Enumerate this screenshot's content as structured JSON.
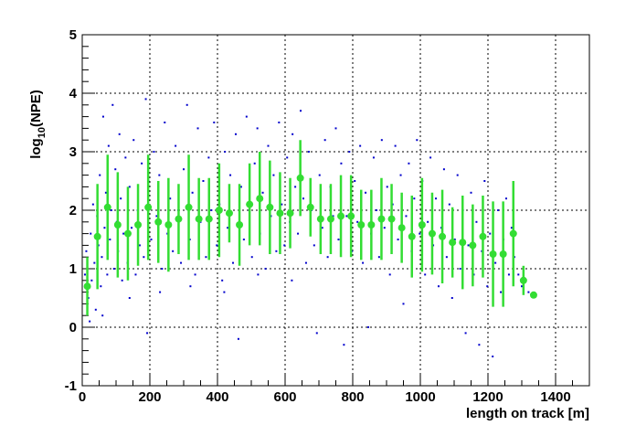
{
  "chart_data": {
    "type": "scatter",
    "x_label": "length on track [m]",
    "y_label_parts": [
      "log",
      "10",
      "(NPE)"
    ],
    "xlim": [
      0,
      1500
    ],
    "ylim": [
      -1,
      5
    ],
    "xticks": [
      0,
      200,
      400,
      600,
      800,
      1000,
      1200,
      1400
    ],
    "yticks": [
      -1,
      0,
      1,
      2,
      3,
      4,
      5
    ],
    "grid": true,
    "scatter": {
      "color": "#0000cc",
      "points": [
        [
          8,
          0.9
        ],
        [
          12,
          1.3
        ],
        [
          18,
          0.5
        ],
        [
          22,
          0.1
        ],
        [
          25,
          1.6
        ],
        [
          28,
          0.8
        ],
        [
          32,
          2.1
        ],
        [
          36,
          1.1
        ],
        [
          40,
          0.3
        ],
        [
          44,
          1.9
        ],
        [
          48,
          1.4
        ],
        [
          52,
          2.6
        ],
        [
          55,
          0.7
        ],
        [
          58,
          1.2
        ],
        [
          62,
          3.6
        ],
        [
          66,
          1.7
        ],
        [
          70,
          2.3
        ],
        [
          74,
          0.9
        ],
        [
          78,
          3.1
        ],
        [
          82,
          1.5
        ],
        [
          86,
          2.0
        ],
        [
          90,
          3.8
        ],
        [
          94,
          1.0
        ],
        [
          98,
          2.7
        ],
        [
          102,
          1.8
        ],
        [
          106,
          1.3
        ],
        [
          110,
          3.3
        ],
        [
          114,
          2.2
        ],
        [
          118,
          0.8
        ],
        [
          122,
          1.6
        ],
        [
          128,
          2.9
        ],
        [
          134,
          1.1
        ],
        [
          140,
          2.4
        ],
        [
          146,
          1.7
        ],
        [
          152,
          3.2
        ],
        [
          158,
          0.9
        ],
        [
          164,
          2.0
        ],
        [
          170,
          1.4
        ],
        [
          176,
          2.8
        ],
        [
          182,
          1.2
        ],
        [
          188,
          3.9
        ],
        [
          192,
          -0.1
        ],
        [
          196,
          2.5
        ],
        [
          204,
          1.5
        ],
        [
          212,
          3.0
        ],
        [
          220,
          1.9
        ],
        [
          228,
          2.6
        ],
        [
          236,
          1.0
        ],
        [
          244,
          3.5
        ],
        [
          252,
          1.6
        ],
        [
          260,
          2.2
        ],
        [
          268,
          1.3
        ],
        [
          276,
          3.1
        ],
        [
          284,
          2.0
        ],
        [
          292,
          1.1
        ],
        [
          300,
          2.7
        ],
        [
          310,
          3.8
        ],
        [
          318,
          1.5
        ],
        [
          326,
          2.3
        ],
        [
          334,
          0.9
        ],
        [
          342,
          3.4
        ],
        [
          350,
          1.8
        ],
        [
          358,
          2.5
        ],
        [
          366,
          1.2
        ],
        [
          374,
          2.9
        ],
        [
          382,
          2.0
        ],
        [
          390,
          3.5
        ],
        [
          398,
          1.4
        ],
        [
          406,
          2.1
        ],
        [
          414,
          0.8
        ],
        [
          422,
          3.0
        ],
        [
          430,
          1.7
        ],
        [
          438,
          2.6
        ],
        [
          446,
          1.1
        ],
        [
          454,
          3.3
        ],
        [
          462,
          -0.2
        ],
        [
          470,
          2.4
        ],
        [
          478,
          1.5
        ],
        [
          486,
          3.6
        ],
        [
          494,
          2.0
        ],
        [
          502,
          1.2
        ],
        [
          510,
          2.8
        ],
        [
          518,
          3.4
        ],
        [
          526,
          1.6
        ],
        [
          534,
          2.3
        ],
        [
          542,
          1.0
        ],
        [
          550,
          3.1
        ],
        [
          558,
          1.9
        ],
        [
          566,
          2.6
        ],
        [
          574,
          1.3
        ],
        [
          582,
          3.5
        ],
        [
          590,
          2.1
        ],
        [
          598,
          1.4
        ],
        [
          606,
          2.9
        ],
        [
          614,
          1.8
        ],
        [
          622,
          3.3
        ],
        [
          630,
          2.4
        ],
        [
          638,
          1.6
        ],
        [
          646,
          3.7
        ],
        [
          654,
          2.2
        ],
        [
          662,
          1.1
        ],
        [
          670,
          3.0
        ],
        [
          678,
          2.0
        ],
        [
          686,
          1.4
        ],
        [
          694,
          -0.1
        ],
        [
          702,
          2.6
        ],
        [
          710,
          1.7
        ],
        [
          718,
          3.2
        ],
        [
          726,
          1.2
        ],
        [
          734,
          2.4
        ],
        [
          742,
          1.9
        ],
        [
          750,
          3.4
        ],
        [
          758,
          1.5
        ],
        [
          766,
          2.8
        ],
        [
          774,
          -0.3
        ],
        [
          782,
          1.9
        ],
        [
          790,
          3.0
        ],
        [
          798,
          1.3
        ],
        [
          806,
          2.5
        ],
        [
          814,
          1.8
        ],
        [
          822,
          3.1
        ],
        [
          830,
          1.1
        ],
        [
          838,
          2.3
        ],
        [
          846,
          0.0
        ],
        [
          854,
          1.6
        ],
        [
          862,
          2.9
        ],
        [
          870,
          2.0
        ],
        [
          878,
          1.2
        ],
        [
          886,
          3.2
        ],
        [
          894,
          1.7
        ],
        [
          902,
          2.4
        ],
        [
          910,
          0.9
        ],
        [
          918,
          2.1
        ],
        [
          926,
          3.1
        ],
        [
          934,
          1.5
        ],
        [
          942,
          2.6
        ],
        [
          950,
          0.4
        ],
        [
          958,
          1.9
        ],
        [
          966,
          2.8
        ],
        [
          974,
          1.3
        ],
        [
          982,
          2.2
        ],
        [
          990,
          3.2
        ],
        [
          998,
          1.6
        ],
        [
          1006,
          2.5
        ],
        [
          1014,
          0.9
        ],
        [
          1022,
          1.8
        ],
        [
          1030,
          2.9
        ],
        [
          1038,
          1.4
        ],
        [
          1046,
          2.2
        ],
        [
          1054,
          0.7
        ],
        [
          1062,
          1.7
        ],
        [
          1070,
          2.7
        ],
        [
          1078,
          1.2
        ],
        [
          1086,
          2.1
        ],
        [
          1094,
          0.5
        ],
        [
          1102,
          1.5
        ],
        [
          1110,
          2.6
        ],
        [
          1118,
          1.0
        ],
        [
          1126,
          2.0
        ],
        [
          1134,
          -0.1
        ],
        [
          1142,
          1.4
        ],
        [
          1150,
          2.3
        ],
        [
          1158,
          0.9
        ],
        [
          1166,
          1.8
        ],
        [
          1174,
          -0.3
        ],
        [
          1182,
          1.3
        ],
        [
          1190,
          2.5
        ],
        [
          1198,
          0.7
        ],
        [
          1206,
          1.6
        ],
        [
          1214,
          -0.5
        ],
        [
          1222,
          1.1
        ],
        [
          1230,
          2.0
        ],
        [
          1238,
          0.6
        ],
        [
          1246,
          1.5
        ],
        [
          1254,
          2.2
        ],
        [
          1262,
          0.9
        ],
        [
          1270,
          1.7
        ],
        [
          1278,
          1.2
        ],
        [
          1290,
          0.9
        ],
        [
          1300,
          0.7
        ],
        [
          1310,
          0.8
        ],
        [
          1320,
          0.6
        ],
        [
          1330,
          0.55
        ],
        [
          60,
          0.2
        ],
        [
          140,
          0.5
        ],
        [
          230,
          0.6
        ],
        [
          320,
          0.7
        ],
        [
          420,
          0.6
        ],
        [
          520,
          0.9
        ],
        [
          620,
          0.8
        ]
      ]
    },
    "profile": {
      "color": "#33dd33",
      "x": [
        15,
        45,
        75,
        105,
        135,
        165,
        195,
        225,
        255,
        285,
        315,
        345,
        375,
        405,
        435,
        465,
        495,
        525,
        555,
        585,
        615,
        645,
        675,
        705,
        735,
        765,
        795,
        825,
        855,
        885,
        915,
        945,
        975,
        1005,
        1035,
        1065,
        1095,
        1125,
        1155,
        1185,
        1215,
        1245,
        1275,
        1305,
        1335
      ],
      "values": [
        0.7,
        1.55,
        2.05,
        1.75,
        1.6,
        1.75,
        2.05,
        1.8,
        1.75,
        1.85,
        2.05,
        1.85,
        1.85,
        2.0,
        1.95,
        1.75,
        2.1,
        2.2,
        2.05,
        1.95,
        1.95,
        2.55,
        2.05,
        1.85,
        1.85,
        1.9,
        1.9,
        1.75,
        1.75,
        1.85,
        1.85,
        1.7,
        1.55,
        1.75,
        1.6,
        1.55,
        1.45,
        1.45,
        1.4,
        1.55,
        1.25,
        1.25,
        1.6,
        0.8,
        0.55
      ],
      "errors": [
        0.5,
        0.9,
        0.9,
        0.9,
        0.8,
        0.7,
        0.9,
        0.7,
        0.8,
        0.6,
        0.9,
        0.7,
        0.7,
        0.8,
        0.5,
        0.7,
        0.7,
        0.8,
        0.8,
        0.7,
        0.6,
        0.65,
        0.5,
        0.6,
        0.6,
        0.7,
        0.7,
        0.6,
        0.6,
        0.7,
        0.6,
        0.6,
        0.7,
        0.8,
        0.7,
        0.8,
        0.6,
        0.8,
        0.7,
        0.7,
        0.9,
        0.9,
        0.9,
        0.25,
        0.05
      ]
    }
  }
}
